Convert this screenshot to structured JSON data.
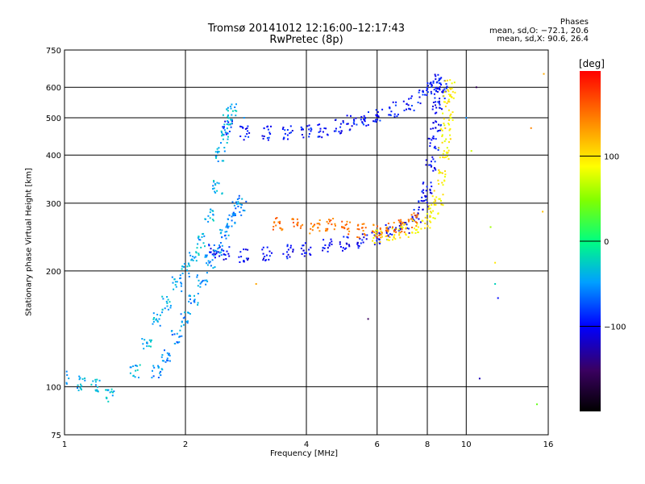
{
  "header": {
    "title_line1": "Tromsø 20141012 12:16:00–12:17:43",
    "title_line2": "RwPretec (8p)"
  },
  "stats": {
    "heading": "Phases",
    "o_line": "mean, sd,O: −72.1, 20.6",
    "x_line": "mean, sd,X:  90.6, 26.4"
  },
  "colorbar": {
    "unit_label": "[deg]",
    "range": [
      -200,
      200
    ],
    "tick_values": [
      100,
      0,
      -100
    ],
    "tick_labels": [
      "100",
      "0",
      "−100"
    ]
  },
  "chart_data": {
    "type": "scatter",
    "xlabel": "Frequency [MHz]",
    "ylabel": "Stationary phase Virtual Height [km]",
    "xscale": "log",
    "yscale": "log",
    "xlim": [
      1,
      16
    ],
    "ylim": [
      75,
      750
    ],
    "grid": true,
    "x_ticks": [
      1,
      2,
      4,
      6,
      8,
      10,
      16
    ],
    "x_tick_labels": [
      "1",
      "2",
      "4",
      "6",
      "8",
      "10",
      "16"
    ],
    "y_ticks": [
      75,
      100,
      200,
      300,
      400,
      500,
      600,
      750
    ],
    "y_tick_labels": [
      "75",
      "100",
      "200",
      "300",
      "400",
      "500",
      "600",
      "750"
    ],
    "traces": [
      {
        "mode": "O",
        "phase_deg": -100,
        "points": [
          [
            2.35,
            225
          ],
          [
            2.5,
            222
          ],
          [
            2.8,
            220
          ],
          [
            3.2,
            222
          ],
          [
            3.6,
            224
          ],
          [
            4.0,
            228
          ],
          [
            4.5,
            232
          ],
          [
            5.0,
            235
          ],
          [
            5.5,
            240
          ],
          [
            6.0,
            245
          ],
          [
            6.5,
            252
          ],
          [
            7.0,
            262
          ],
          [
            7.5,
            280
          ],
          [
            7.8,
            300
          ],
          [
            8.0,
            330
          ],
          [
            8.15,
            380
          ],
          [
            8.3,
            430
          ],
          [
            8.4,
            480
          ],
          [
            8.5,
            530
          ],
          [
            8.6,
            575
          ],
          [
            8.7,
            610
          ]
        ]
      },
      {
        "mode": "O_upper",
        "phase_deg": -95,
        "points": [
          [
            2.55,
            470
          ],
          [
            2.8,
            458
          ],
          [
            3.2,
            455
          ],
          [
            3.6,
            456
          ],
          [
            4.0,
            460
          ],
          [
            4.4,
            465
          ],
          [
            4.8,
            475
          ],
          [
            5.2,
            485
          ],
          [
            5.6,
            495
          ],
          [
            6.0,
            505
          ],
          [
            6.6,
            525
          ],
          [
            7.2,
            545
          ],
          [
            7.8,
            570
          ],
          [
            8.2,
            600
          ],
          [
            8.4,
            625
          ]
        ]
      },
      {
        "mode": "X",
        "phase_deg": 95,
        "points": [
          [
            6.0,
            245
          ],
          [
            6.5,
            250
          ],
          [
            7.0,
            255
          ],
          [
            7.5,
            262
          ],
          [
            8.0,
            270
          ],
          [
            8.3,
            285
          ],
          [
            8.5,
            310
          ],
          [
            8.7,
            350
          ],
          [
            8.8,
            400
          ],
          [
            8.9,
            450
          ],
          [
            9.0,
            500
          ],
          [
            9.05,
            550
          ],
          [
            9.1,
            600
          ]
        ]
      },
      {
        "mode": "X_orange",
        "phase_deg": 150,
        "points": [
          [
            3.4,
            265
          ],
          [
            3.8,
            262
          ],
          [
            4.2,
            260
          ],
          [
            4.6,
            262
          ],
          [
            5.0,
            258
          ],
          [
            5.5,
            255
          ],
          [
            6.0,
            254
          ],
          [
            6.5,
            258
          ],
          [
            7.0,
            262
          ],
          [
            7.4,
            270
          ]
        ]
      },
      {
        "mode": "low_layer",
        "phase_deg": -40,
        "points": [
          [
            1.0,
            105
          ],
          [
            1.1,
            102
          ],
          [
            1.2,
            100
          ],
          [
            1.3,
            95
          ],
          [
            1.5,
            110
          ],
          [
            1.6,
            130
          ],
          [
            1.7,
            150
          ],
          [
            1.8,
            165
          ],
          [
            1.9,
            185
          ],
          [
            2.0,
            200
          ],
          [
            2.1,
            215
          ],
          [
            2.2,
            240
          ],
          [
            2.3,
            280
          ],
          [
            2.4,
            330
          ],
          [
            2.45,
            400
          ],
          [
            2.5,
            450
          ],
          [
            2.55,
            500
          ],
          [
            2.6,
            520
          ]
        ]
      },
      {
        "mode": "spread_F",
        "phase_deg": -55,
        "points": [
          [
            1.7,
            110
          ],
          [
            1.8,
            120
          ],
          [
            1.9,
            135
          ],
          [
            2.0,
            150
          ],
          [
            2.1,
            170
          ],
          [
            2.2,
            190
          ],
          [
            2.3,
            210
          ],
          [
            2.4,
            230
          ],
          [
            2.5,
            250
          ],
          [
            2.6,
            270
          ],
          [
            2.7,
            290
          ],
          [
            2.75,
            300
          ]
        ]
      },
      {
        "mode": "outliers",
        "phase_deg": 0,
        "points": [
          [
            2.8,
            500
          ],
          [
            10.0,
            500
          ],
          [
            10.3,
            410
          ],
          [
            10.6,
            600
          ],
          [
            10.8,
            105
          ],
          [
            11.5,
            260
          ],
          [
            11.8,
            210
          ],
          [
            11.8,
            185
          ],
          [
            12.0,
            170
          ],
          [
            14.5,
            470
          ],
          [
            15.0,
            90
          ],
          [
            15.5,
            285
          ],
          [
            15.6,
            650
          ],
          [
            5.7,
            150
          ],
          [
            3.0,
            185
          ]
        ]
      }
    ]
  }
}
